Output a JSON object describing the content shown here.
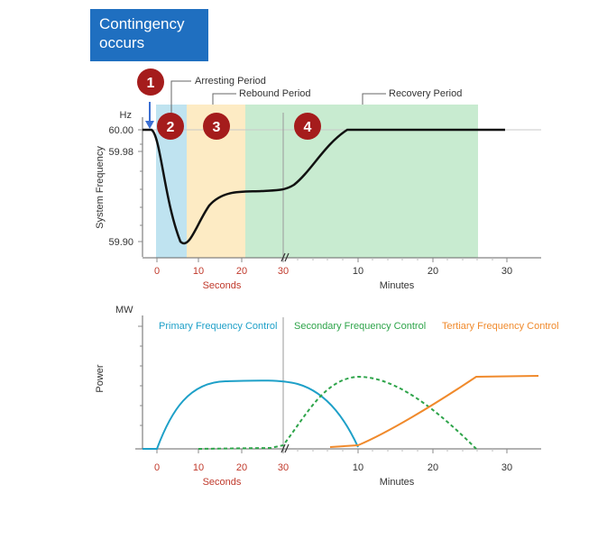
{
  "callout": {
    "line1": "Contingency",
    "line2": "occurs"
  },
  "chart_data": [
    {
      "type": "line",
      "ylabel": "System Frequency",
      "y_unit": "Hz",
      "y_ticks": [
        "60.00",
        "59.98",
        "59.90"
      ],
      "x_seconds_ticks": [
        "0",
        "10",
        "20",
        "30"
      ],
      "x_seconds_label": "Seconds",
      "x_minutes_ticks": [
        "10",
        "20",
        "30"
      ],
      "x_minutes_label": "Minutes",
      "markers": [
        "1",
        "2",
        "3",
        "4"
      ],
      "periods": [
        {
          "label": "Arresting Period",
          "color": "#bfe3f0"
        },
        {
          "label": "Rebound Period",
          "color": "#fdebc4"
        },
        {
          "label": "Recovery Period",
          "color": "#c8ebd0"
        }
      ],
      "series": [
        {
          "values": [
            {
              "t": "-3 s",
              "hz": 60.0
            },
            {
              "t": "0 s",
              "hz": 60.0
            },
            {
              "t": "3 s",
              "hz": 59.95
            },
            {
              "t": "7 s",
              "hz": 59.9
            },
            {
              "t": "12 s",
              "hz": 59.93
            },
            {
              "t": "20 s",
              "hz": 59.945
            },
            {
              "t": "30 s",
              "hz": 59.947
            },
            {
              "t": "5 min",
              "hz": 59.98
            },
            {
              "t": "10 min",
              "hz": 60.0
            },
            {
              "t": "30 min",
              "hz": 60.0
            }
          ]
        }
      ]
    },
    {
      "type": "line",
      "ylabel": "Power",
      "y_unit": "MW",
      "x_seconds_ticks": [
        "0",
        "10",
        "20",
        "30"
      ],
      "x_seconds_label": "Seconds",
      "x_minutes_ticks": [
        "10",
        "20",
        "30"
      ],
      "x_minutes_label": "Minutes",
      "series": [
        {
          "name": "Primary Frequency Control",
          "color": "#1ea0c8",
          "style": "solid",
          "values": [
            {
              "t": "0 s",
              "mw": 0
            },
            {
              "t": "10 s",
              "mw": 0.62
            },
            {
              "t": "20 s",
              "mw": 0.95
            },
            {
              "t": "30 s",
              "mw": 0.97
            },
            {
              "t": "5 min",
              "mw": 0.8
            },
            {
              "t": "10 min",
              "mw": 0
            }
          ]
        },
        {
          "name": "Secondary Frequency Control",
          "color": "#2ea44a",
          "style": "dashed",
          "values": [
            {
              "t": "10 s",
              "mw": 0
            },
            {
              "t": "30 s",
              "mw": 0.02
            },
            {
              "t": "5 min",
              "mw": 0.8
            },
            {
              "t": "10 min",
              "mw": 1.0
            },
            {
              "t": "25 min",
              "mw": 0
            }
          ]
        },
        {
          "name": "Tertiary Frequency Control",
          "color": "#f08a2c",
          "style": "solid",
          "values": [
            {
              "t": "7 min",
              "mw": 0
            },
            {
              "t": "10 min",
              "mw": 0.03
            },
            {
              "t": "20 min",
              "mw": 0.55
            },
            {
              "t": "26 min",
              "mw": 1.0
            },
            {
              "t": "34 min",
              "mw": 1.0
            }
          ]
        }
      ]
    }
  ]
}
